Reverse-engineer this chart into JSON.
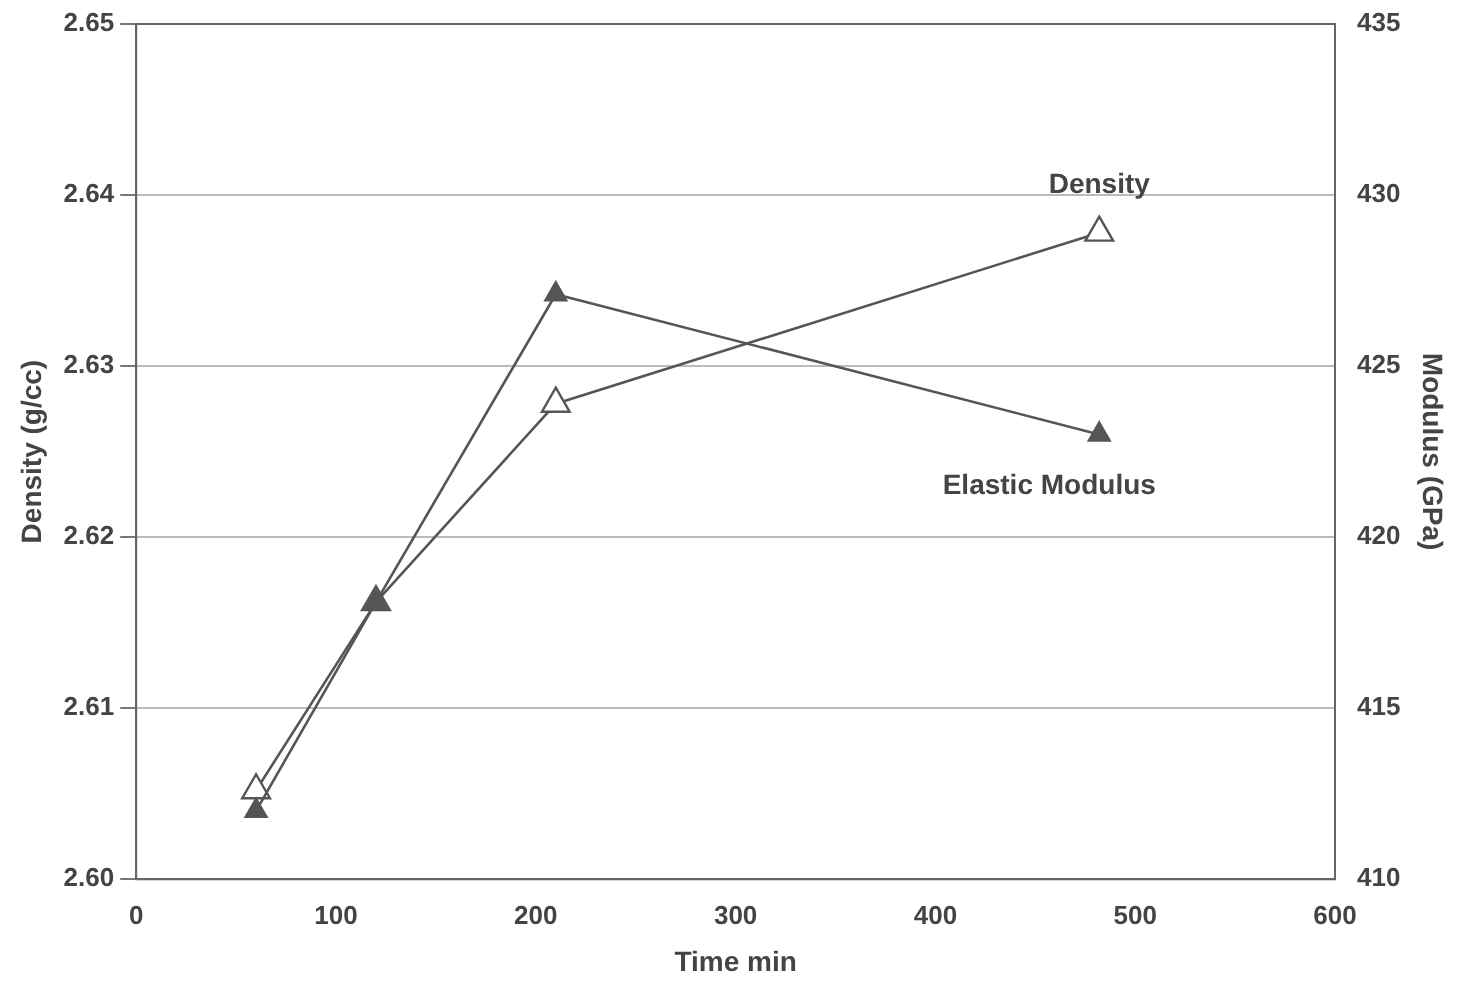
{
  "chart_data": {
    "type": "line",
    "xlabel": "Time min",
    "ylabel": "Density (g/cc)",
    "y2label": "Modulus (GPa)",
    "series": [
      {
        "name": "Density",
        "color": "#555555",
        "x": [
          60,
          120,
          210,
          482
        ],
        "values": [
          2.6052,
          2.6162,
          2.6278,
          2.6378
        ]
      },
      {
        "name": "Elastic Modulus",
        "color": "#555555",
        "axis": "y2",
        "x": [
          60,
          120,
          210,
          482
        ],
        "values": [
          412,
          418.1,
          427.1,
          423
        ]
      }
    ],
    "xlim": [
      0,
      600
    ],
    "xticks": [
      0,
      100,
      200,
      300,
      400,
      500,
      600
    ],
    "ylim": [
      2.6,
      2.65
    ],
    "yticks": [
      {
        "value": 2.6,
        "label": "2.60"
      },
      {
        "value": 2.61,
        "label": "2.61"
      },
      {
        "value": 2.62,
        "label": "2.62"
      },
      {
        "value": 2.63,
        "label": "2.63"
      },
      {
        "value": 2.64,
        "label": "2.64"
      },
      {
        "value": 2.65,
        "label": "2.65"
      }
    ],
    "y2lim": [
      410,
      435
    ],
    "y2ticks": [
      410,
      415,
      420,
      425,
      430,
      435
    ],
    "grid": "y",
    "legend": false,
    "marker": "triangle",
    "line_style": "solid"
  }
}
